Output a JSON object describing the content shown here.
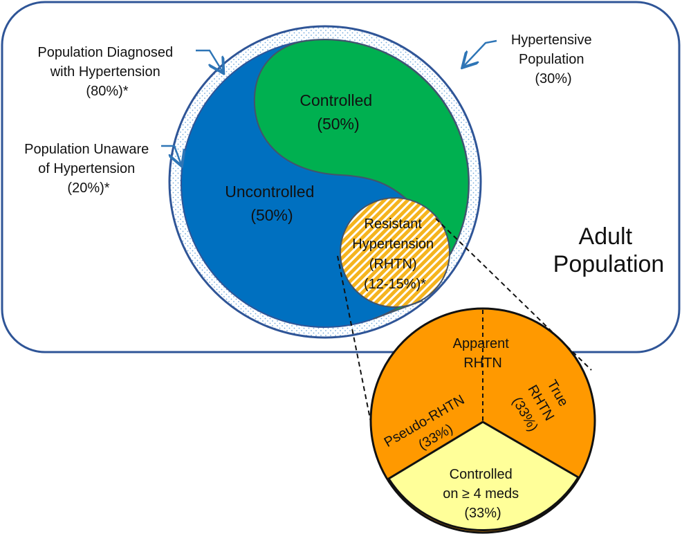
{
  "colors": {
    "frame": "#2f5597",
    "uncontrolled": "#0070c0",
    "controlled": "#00b050",
    "rhtn": "#f5b41e",
    "apparent": "#ff9900",
    "controlled_meds": "#ffff99",
    "dots": "#6fa8dc"
  },
  "adult": {
    "line1": "Adult",
    "line2": "Population"
  },
  "labels": {
    "diagnosed": {
      "line1": "Population Diagnosed",
      "line2": "with Hypertension",
      "line3": "(80%)*"
    },
    "unaware": {
      "line1": "Population Unaware",
      "line2": "of Hypertension",
      "line3": "(20%)*"
    },
    "hypertensive": {
      "line1": "Hypertensive",
      "line2": "Population",
      "line3": "(30%)"
    }
  },
  "regions": {
    "controlled": {
      "name": "Controlled",
      "pct": "(50%)"
    },
    "uncontrolled": {
      "name": "Uncontrolled",
      "pct": "(50%)"
    },
    "rhtn": {
      "line1": "Resistant",
      "line2": "Hypertension",
      "line3": "(RHTN)",
      "line4": "(12-15%)*"
    }
  },
  "breakdown": {
    "apparent": {
      "line1": "Apparent",
      "line2": "RHTN"
    },
    "pseudo": {
      "line1": "Pseudo-RHTN",
      "line2": "(33%)"
    },
    "true": {
      "line1": "True",
      "line2": "RHTN",
      "line3": "(33%)"
    },
    "controlled_meds": {
      "line1": "Controlled",
      "line2": "on ≥ 4 meds",
      "line3": "(33%)"
    }
  }
}
